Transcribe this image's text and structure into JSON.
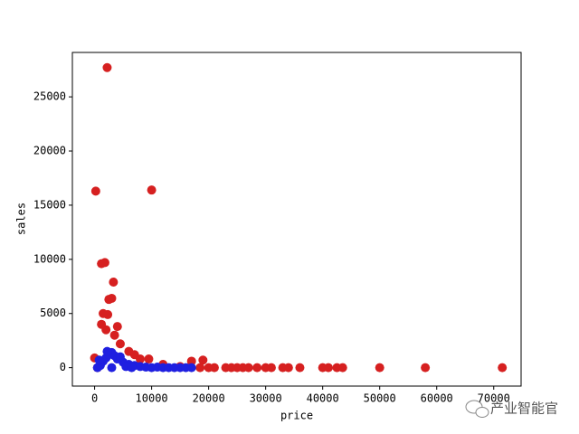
{
  "chart_data": {
    "type": "scatter",
    "xlabel": "price",
    "ylabel": "sales",
    "xlim": [
      -3900,
      74800
    ],
    "ylim": [
      -1700,
      29100
    ],
    "xticks": [
      0,
      10000,
      20000,
      30000,
      40000,
      50000,
      60000,
      70000
    ],
    "yticks": [
      0,
      5000,
      10000,
      15000,
      20000,
      25000
    ],
    "series": [
      {
        "color": "#d62020",
        "x": [
          2200,
          200,
          10000,
          1200,
          1800,
          2500,
          3000,
          3300,
          1500,
          2300,
          4000,
          2000,
          1200,
          3500,
          4500,
          6000,
          7000,
          8000,
          9500,
          12000,
          15000,
          17000,
          19000,
          20000,
          21000,
          23000,
          24000,
          25000,
          26000,
          27000,
          28500,
          30000,
          31000,
          33000,
          34000,
          36000,
          40000,
          41000,
          42500,
          43500,
          50000,
          58000,
          71500,
          0,
          500,
          18500
        ],
        "values": [
          27700,
          16300,
          16400,
          9600,
          9700,
          6300,
          6400,
          7900,
          5000,
          4900,
          3800,
          3500,
          4000,
          3000,
          2200,
          1500,
          1200,
          800,
          800,
          300,
          100,
          600,
          700,
          0,
          0,
          0,
          0,
          0,
          0,
          0,
          0,
          0,
          0,
          0,
          0,
          0,
          0,
          0,
          0,
          0,
          0,
          0,
          0,
          900,
          0,
          0
        ]
      },
      {
        "color": "#1f1fe0",
        "x": [
          500,
          1000,
          1500,
          2000,
          2500,
          3000,
          3500,
          4000,
          5000,
          6000,
          7000,
          8000,
          9000,
          10000,
          11000,
          12000,
          13000,
          14000,
          15000,
          16000,
          17000,
          2200,
          4500,
          5500,
          3000,
          6500,
          800
        ],
        "values": [
          0,
          200,
          600,
          900,
          1200,
          1400,
          1100,
          800,
          500,
          300,
          200,
          100,
          50,
          0,
          50,
          0,
          0,
          0,
          0,
          0,
          0,
          1500,
          1000,
          100,
          0,
          0,
          700
        ]
      }
    ]
  },
  "watermark": "产业智能官"
}
